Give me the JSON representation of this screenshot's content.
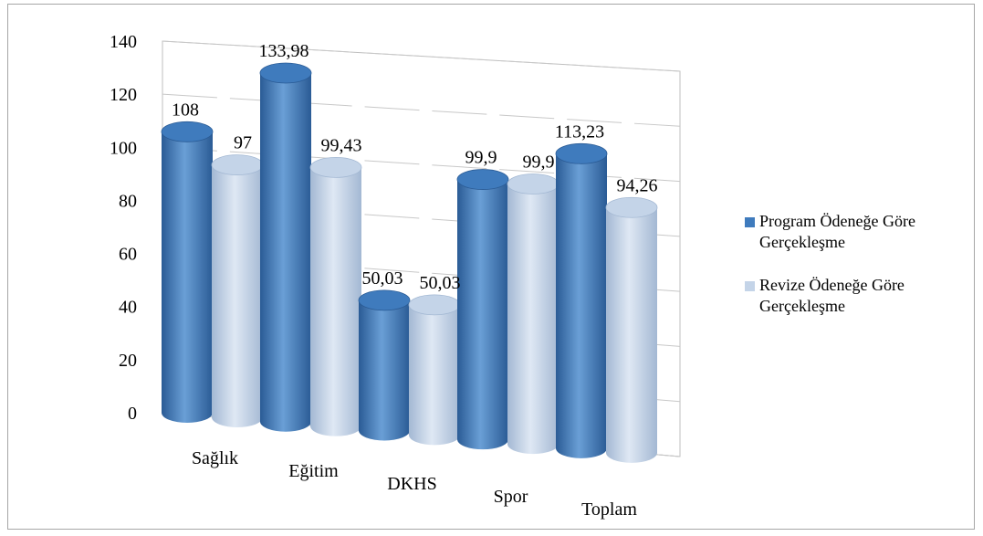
{
  "colors": {
    "series1": "#3f7bbd",
    "series1_dark": "#2a5b95",
    "series1_light": "#6a9fd6",
    "series2": "#c4d4e8",
    "series2_dark": "#a3b8d3",
    "series2_light": "#dfe8f4"
  },
  "chart_data": {
    "type": "bar",
    "style": "3d-cylinder",
    "categories": [
      "Sağlık",
      "Eğitim",
      "DKHS",
      "Spor",
      "Toplam"
    ],
    "series": [
      {
        "name": "Program Ödeneğe Göre Gerçekleşme",
        "values": [
          108,
          133.98,
          50.03,
          99.9,
          113.23
        ],
        "labels": [
          "108",
          "133,98",
          "50,03",
          "99,9",
          "113,23"
        ]
      },
      {
        "name": "Revize Ödeneğe Göre Gerçekleşme",
        "values": [
          97,
          99.43,
          50.03,
          99.9,
          94.26
        ],
        "labels": [
          "97",
          "99,43",
          "50,03",
          "99,9",
          "94,26"
        ]
      }
    ],
    "yticks": [
      "0",
      "20",
      "40",
      "60",
      "80",
      "100",
      "120",
      "140"
    ],
    "ylim": [
      0,
      140
    ],
    "grid": true,
    "legend": [
      {
        "lines": [
          "Program Ödeneğe Göre",
          "Gerçekleşme"
        ]
      },
      {
        "lines": [
          "Revize Ödeneğe Göre",
          "Gerçekleşme"
        ]
      }
    ],
    "legend_position": "right"
  }
}
